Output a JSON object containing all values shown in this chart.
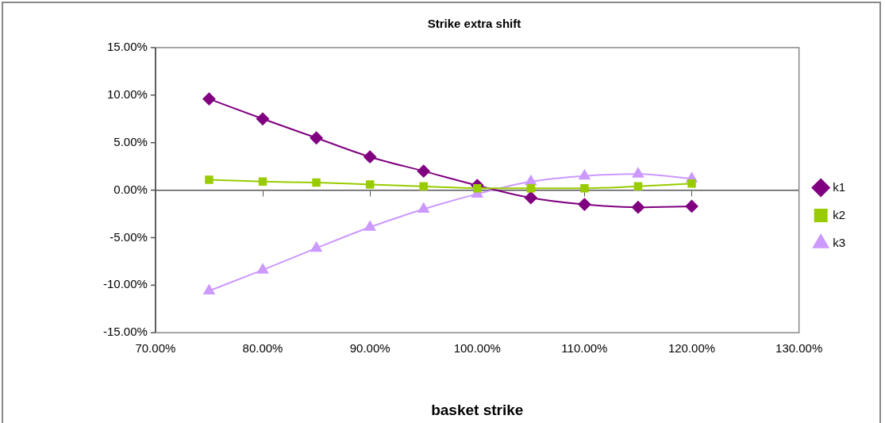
{
  "chart_data": {
    "type": "line",
    "title": "Strike extra shift",
    "xlabel": "basket strike",
    "x": [
      75,
      80,
      85,
      90,
      95,
      100,
      105,
      110,
      115,
      120
    ],
    "series": [
      {
        "name": "k1",
        "color": "#800080",
        "marker": "diamond",
        "values": [
          9.6,
          7.5,
          5.5,
          3.5,
          2.0,
          0.5,
          -0.8,
          -1.5,
          -1.8,
          -1.7
        ]
      },
      {
        "name": "k2",
        "color": "#99cc00",
        "marker": "square",
        "values": [
          1.1,
          0.9,
          0.8,
          0.6,
          0.4,
          0.2,
          0.2,
          0.2,
          0.4,
          0.7
        ]
      },
      {
        "name": "k3",
        "color": "#cc99ff",
        "marker": "triangle",
        "values": [
          -10.6,
          -8.4,
          -6.1,
          -3.9,
          -2.0,
          -0.4,
          0.9,
          1.5,
          1.7,
          1.2
        ]
      }
    ],
    "xlim": [
      70,
      130
    ],
    "xticks": [
      {
        "value": 70,
        "label": "70.00%"
      },
      {
        "value": 80,
        "label": "80.00%"
      },
      {
        "value": 90,
        "label": "90.00%"
      },
      {
        "value": 100,
        "label": "100.00%"
      },
      {
        "value": 110,
        "label": "110.00%"
      },
      {
        "value": 120,
        "label": "120.00%"
      },
      {
        "value": 130,
        "label": "130.00%"
      }
    ],
    "ylim": [
      -15,
      15
    ],
    "yticks": [
      {
        "value": -15,
        "label": "-15.00%"
      },
      {
        "value": -10,
        "label": "-10.00%"
      },
      {
        "value": -5,
        "label": "-5.00%"
      },
      {
        "value": 0,
        "label": "0.00%"
      },
      {
        "value": 5,
        "label": "5.00%"
      },
      {
        "value": 10,
        "label": "10.00%"
      },
      {
        "value": 15,
        "label": "15.00%"
      }
    ],
    "legend": "right",
    "line_style": "solid"
  }
}
